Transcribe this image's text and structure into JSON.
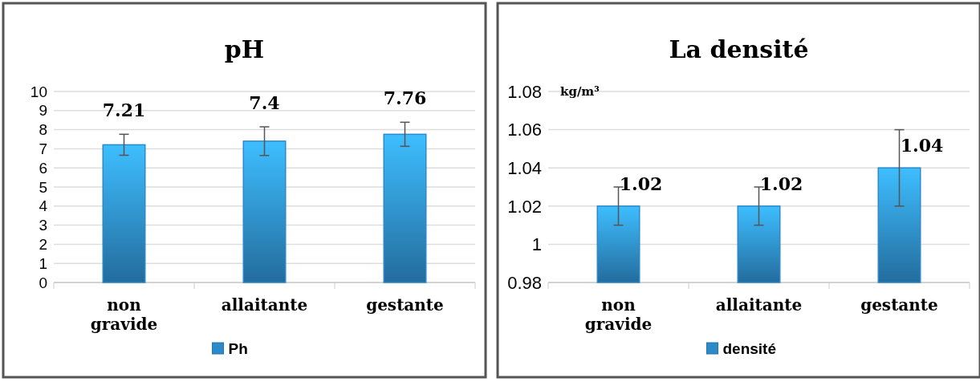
{
  "chart_data": [
    {
      "type": "bar",
      "title": "pH",
      "categories": [
        "non gravide",
        "allaitante",
        "gestante"
      ],
      "series": [
        {
          "name": "Ph",
          "color": "#2d8ac9",
          "values": [
            7.21,
            7.4,
            7.76
          ],
          "errors": [
            0.55,
            0.75,
            0.63
          ]
        }
      ],
      "ylim": [
        0,
        10
      ],
      "yticks": [
        0,
        1,
        2,
        3,
        4,
        5,
        6,
        7,
        8,
        9,
        10
      ],
      "grid": "y",
      "legend": "bottom",
      "data_labels": true
    },
    {
      "type": "bar",
      "title": "La densité",
      "ylabel": "kg/m³",
      "categories": [
        "non gravide",
        "allaitante",
        "gestante"
      ],
      "series": [
        {
          "name": "densité",
          "color": "#2d8ac9",
          "values": [
            1.02,
            1.02,
            1.04
          ],
          "errors": [
            0.01,
            0.01,
            0.02
          ]
        }
      ],
      "ylim": [
        0.98,
        1.08
      ],
      "yticks": [
        0.98,
        1,
        1.02,
        1.04,
        1.06,
        1.08
      ],
      "grid": "y",
      "legend": "bottom",
      "data_labels": true
    }
  ]
}
